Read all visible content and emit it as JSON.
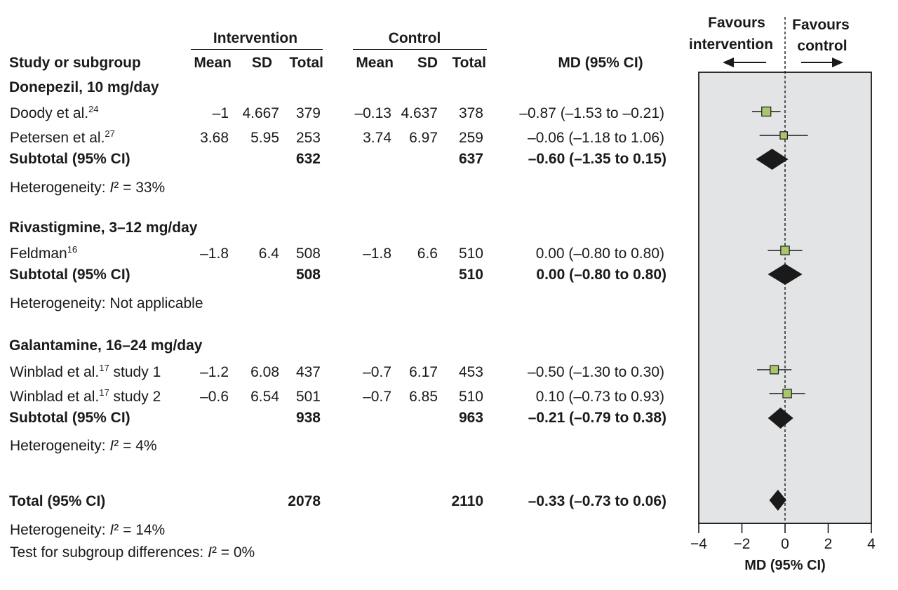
{
  "headers": {
    "intervention": "Intervention",
    "control": "Control",
    "study": "Study or subgroup",
    "mean": "Mean",
    "sd": "SD",
    "total": "Total",
    "md": "MD (95% CI)",
    "favours_intervention_1": "Favours",
    "favours_intervention_2": "intervention",
    "favours_control_1": "Favours",
    "favours_control_2": "control"
  },
  "rows": [
    {
      "label": "Donepezil, 10 mg/day"
    },
    {
      "name": "Doody et al.",
      "ref": "24",
      "suffix": "",
      "i_mean": "–1",
      "i_sd": "4.667",
      "i_total": "379",
      "c_mean": "–0.13",
      "c_sd": "4.637",
      "c_total": "378",
      "md": "–0.87 (–1.53 to –0.21)"
    },
    {
      "name": "Petersen et al.",
      "ref": "27",
      "suffix": "",
      "i_mean": "3.68",
      "i_sd": "5.95",
      "i_total": "253",
      "c_mean": "3.74",
      "c_sd": "6.97",
      "c_total": "259",
      "md": "–0.06 (–1.18 to 1.06)"
    },
    {
      "label": "Subtotal (95% CI)",
      "i_total": "632",
      "c_total": "637",
      "md": "–0.60 (–1.35 to 0.15)"
    },
    {
      "het_prefix": "Heterogeneity: ",
      "het_i": "I",
      "het_rest": "² = 33%"
    },
    {
      "label": "Rivastigmine, 3–12 mg/day"
    },
    {
      "name": "Feldman",
      "ref": "16",
      "suffix": "",
      "i_mean": "–1.8",
      "i_sd": "6.4",
      "i_total": "508",
      "c_mean": "–1.8",
      "c_sd": "6.6",
      "c_total": "510",
      "md": "0.00 (–0.80 to 0.80)"
    },
    {
      "label": "Subtotal (95% CI)",
      "i_total": "508",
      "c_total": "510",
      "md": "0.00 (–0.80 to 0.80)"
    },
    {
      "text": "Heterogeneity: Not applicable"
    },
    {
      "label": "Galantamine, 16–24 mg/day"
    },
    {
      "name": "Winblad et al.",
      "ref": "17",
      "suffix": " study 1",
      "i_mean": "–1.2",
      "i_sd": "6.08",
      "i_total": "437",
      "c_mean": "–0.7",
      "c_sd": "6.17",
      "c_total": "453",
      "md": "–0.50 (–1.30 to 0.30)"
    },
    {
      "name": "Winblad et al.",
      "ref": "17",
      "suffix": " study 2",
      "i_mean": "–0.6",
      "i_sd": "6.54",
      "i_total": "501",
      "c_mean": "–0.7",
      "c_sd": "6.85",
      "c_total": "510",
      "md": "0.10 (–0.73 to 0.93)"
    },
    {
      "label": "Subtotal (95% CI)",
      "i_total": "938",
      "c_total": "963",
      "md": "–0.21 (–0.79 to 0.38)"
    },
    {
      "het_prefix": "Heterogeneity: ",
      "het_i": "I",
      "het_rest": "² = 4%"
    },
    {
      "label": "Total (95% CI)",
      "i_total": "2078",
      "c_total": "2110",
      "md": "–0.33 (–0.73 to 0.06)"
    },
    {
      "het_prefix": "Heterogeneity: ",
      "het_i": "I",
      "het_rest": "² = 14%"
    },
    {
      "het_prefix": "Test for subgroup differences: ",
      "het_i": "I",
      "het_rest": "² = 0%"
    }
  ],
  "chart_data": {
    "type": "forest",
    "xlabel": "MD (95% CI)",
    "xlim": [
      -4,
      4
    ],
    "xticks": [
      -4,
      -2,
      0,
      2,
      4
    ],
    "tick_labels": [
      "−4",
      "−2",
      "0",
      "2",
      "4"
    ],
    "reference_line": 0,
    "studies": [
      {
        "name": "Doody et al. 24",
        "md": -0.87,
        "ci": [
          -1.53,
          -0.21
        ],
        "weight": 632
      },
      {
        "name": "Petersen et al. 27",
        "md": -0.06,
        "ci": [
          -1.18,
          1.06
        ],
        "weight": 253
      },
      {
        "name": "Feldman 16",
        "md": 0.0,
        "ci": [
          -0.8,
          0.8
        ],
        "weight": 508
      },
      {
        "name": "Winblad et al. 17 study 1",
        "md": -0.5,
        "ci": [
          -1.3,
          0.3
        ],
        "weight": 437
      },
      {
        "name": "Winblad et al. 17 study 2",
        "md": 0.1,
        "ci": [
          -0.73,
          0.93
        ],
        "weight": 501
      }
    ],
    "subtotals": [
      {
        "name": "Donepezil subtotal",
        "md": -0.6,
        "ci": [
          -1.35,
          0.15
        ]
      },
      {
        "name": "Rivastigmine subtotal",
        "md": 0.0,
        "ci": [
          -0.8,
          0.8
        ]
      },
      {
        "name": "Galantamine subtotal",
        "md": -0.21,
        "ci": [
          -0.79,
          0.38
        ]
      },
      {
        "name": "Total",
        "md": -0.33,
        "ci": [
          -0.73,
          0.06
        ]
      }
    ],
    "colors": {
      "panel": "#e3e4e6",
      "square": "#a9c66a",
      "diamond": "#1a1a1a"
    }
  }
}
